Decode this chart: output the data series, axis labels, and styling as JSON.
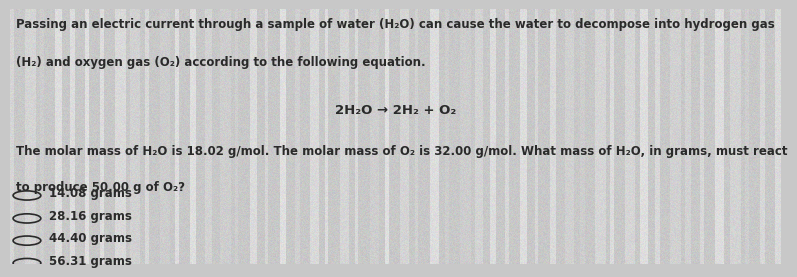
{
  "bg_color": "#c8c8c8",
  "text_color": "#2a2a2a",
  "paragraph1_line1": "Passing an electric current through a sample of water (H₂O) can cause the water to decompose into hydrogen gas",
  "paragraph1_line2": "(H₂) and oxygen gas (O₂) according to the following equation.",
  "equation": "2H₂O → 2H₂ + O₂",
  "paragraph2_line1": "The molar mass of H₂O is 18.02 g/mol. The molar mass of O₂ is 32.00 g/mol. What mass of H₂O, in grams, must react",
  "paragraph2_line2": "to produce 50.00 g of O₂?",
  "choices": [
    "14.08 grams",
    "28.16 grams",
    "44.40 grams",
    "56.31 grams"
  ],
  "font_size_body": 8.5,
  "font_size_equation": 9.5,
  "font_size_choices": 8.5,
  "noise_seed": 42,
  "noise_intensity": 18
}
